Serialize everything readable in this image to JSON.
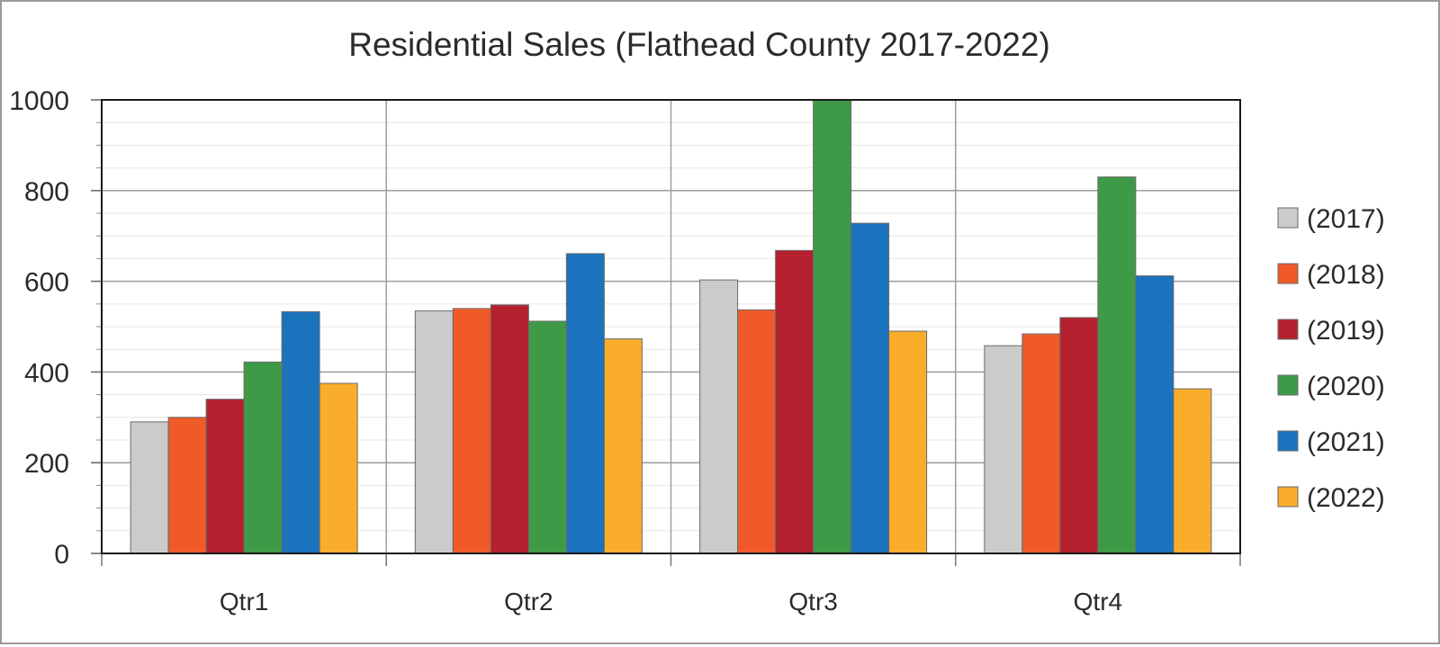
{
  "chart_data": {
    "type": "bar",
    "title": "Residential Sales (Flathead County 2017-2022)",
    "xlabel": "",
    "ylabel": "",
    "categories": [
      "Qtr1",
      "Qtr2",
      "Qtr3",
      "Qtr4"
    ],
    "ylim": [
      0,
      1000
    ],
    "yticks": [
      0,
      200,
      400,
      600,
      800,
      1000
    ],
    "grid": true,
    "legend_position": "right",
    "series": [
      {
        "name": "(2017)",
        "color": "#cbcbcb",
        "values": [
          290,
          535,
          603,
          458
        ]
      },
      {
        "name": "(2018)",
        "color": "#ef5a28",
        "values": [
          300,
          540,
          537,
          484
        ]
      },
      {
        "name": "(2019)",
        "color": "#b5202e",
        "values": [
          340,
          548,
          668,
          520
        ]
      },
      {
        "name": "(2020)",
        "color": "#3f9a47",
        "values": [
          422,
          512,
          1000,
          830
        ]
      },
      {
        "name": "(2021)",
        "color": "#1b73be",
        "values": [
          533,
          661,
          728,
          612
        ]
      },
      {
        "name": "(2022)",
        "color": "#f9ad2b",
        "values": [
          375,
          473,
          490,
          363
        ]
      }
    ]
  }
}
